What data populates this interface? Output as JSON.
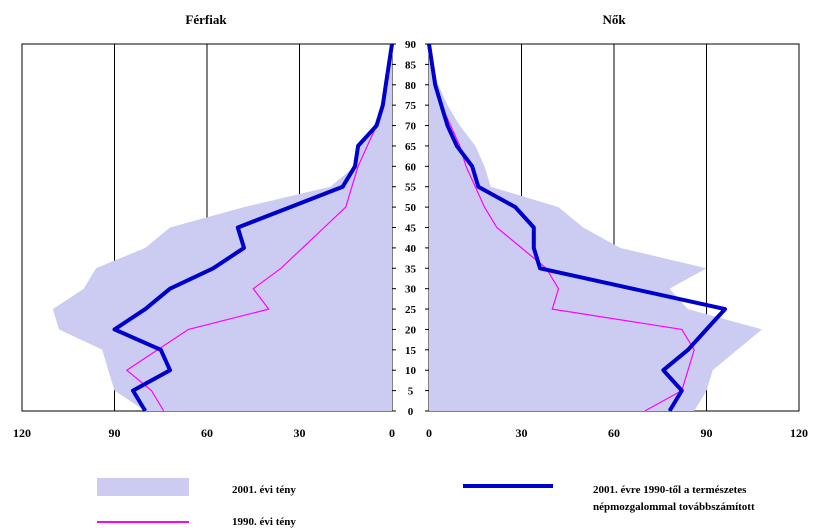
{
  "chart_data": {
    "type": "area",
    "panels": [
      {
        "title": "Férfiak",
        "side": "left"
      },
      {
        "title": "Nők",
        "side": "right"
      }
    ],
    "x_ticks": [
      0,
      30,
      60,
      90,
      120
    ],
    "y_ticks": [
      0,
      5,
      10,
      15,
      20,
      25,
      30,
      35,
      40,
      45,
      50,
      55,
      60,
      65,
      70,
      75,
      80,
      85,
      90
    ],
    "xlim": [
      0,
      120
    ],
    "ylim": [
      0,
      90
    ],
    "grid": "vertical lines at 30, 60, 90",
    "legend_position": "bottom",
    "ages": [
      0,
      5,
      10,
      15,
      20,
      25,
      30,
      35,
      40,
      45,
      50,
      55,
      60,
      65,
      70,
      75,
      80,
      85,
      90
    ],
    "series": [
      {
        "name": "2001. évi tény",
        "style": "filled bars",
        "color": "#ccccf2",
        "male": [
          80,
          90,
          92,
          94,
          108,
          110,
          100,
          96,
          80,
          72,
          48,
          20,
          12,
          11,
          6,
          3,
          2,
          1,
          0
        ],
        "female": [
          86,
          90,
          92,
          100,
          108,
          84,
          78,
          90,
          62,
          50,
          42,
          20,
          18,
          15,
          10,
          6,
          3,
          1,
          0
        ]
      },
      {
        "name": "1990. évi tény",
        "style": "thin line",
        "color": "#ff00ff",
        "male": [
          74,
          78,
          86,
          76,
          66,
          40,
          45,
          36,
          29,
          22,
          15,
          13,
          11,
          8,
          5,
          3,
          2,
          1,
          0
        ],
        "female": [
          70,
          82,
          84,
          86,
          82,
          40,
          42,
          38,
          30,
          22,
          18,
          15,
          12,
          10,
          7,
          4,
          2,
          1,
          0
        ]
      },
      {
        "name": "2001. évre 1990-től a természetes népmozgalommal továbbszámított",
        "style": "thick line",
        "color": "#0000cc",
        "male": [
          80,
          84,
          72,
          75,
          90,
          80,
          72,
          58,
          48,
          50,
          33,
          16,
          12,
          11,
          5,
          3,
          2,
          1,
          0
        ],
        "female": [
          78,
          82,
          76,
          84,
          90,
          96,
          66,
          36,
          34,
          34,
          28,
          16,
          14,
          9,
          6,
          4,
          2,
          1,
          0
        ]
      }
    ]
  },
  "colors": {
    "fill": "#ccccf2",
    "line_1990": "#ff00ff",
    "line_proj": "#0000cc",
    "axis": "#000000"
  },
  "legend": [
    {
      "label": "2001. évi tény",
      "swatch": "fill"
    },
    {
      "label": "1990. évi tény",
      "swatch": "line_1990"
    },
    {
      "label": "2001. évre 1990-től a természetes",
      "label2": "népmozgalommal továbbszámított",
      "swatch": "line_proj"
    }
  ]
}
